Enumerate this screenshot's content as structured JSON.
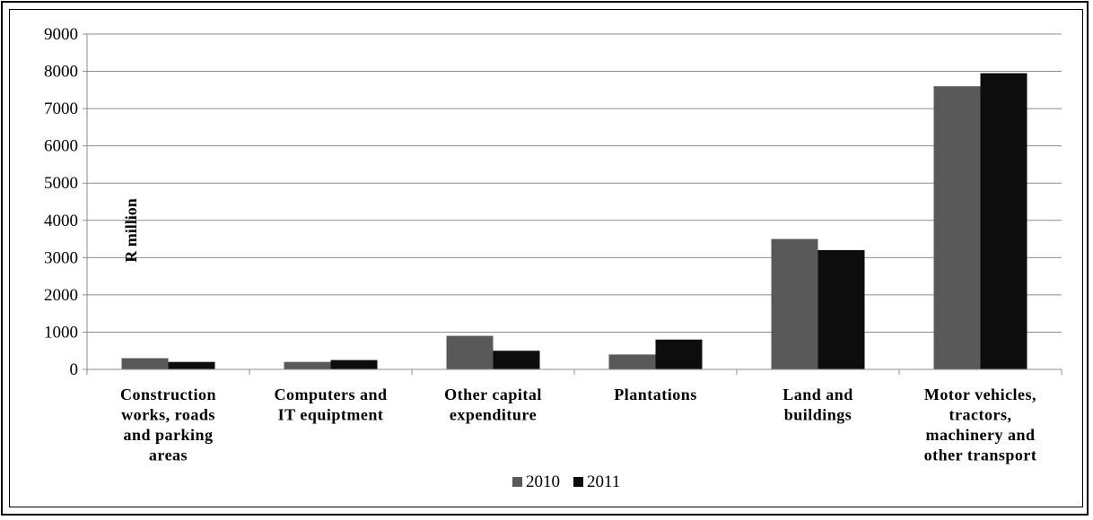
{
  "chart_data": {
    "type": "bar",
    "title": "",
    "xlabel": "",
    "ylabel": "R million",
    "ylim": [
      0,
      9000
    ],
    "yticks": [
      0,
      1000,
      2000,
      3000,
      4000,
      5000,
      6000,
      7000,
      8000,
      9000
    ],
    "categories": [
      [
        "Construction",
        "works, roads",
        "and parking",
        "areas"
      ],
      [
        "Computers and",
        "IT equiptment"
      ],
      [
        "Other capital",
        "expenditure"
      ],
      [
        "Plantations"
      ],
      [
        "Land and",
        "buildings"
      ],
      [
        "Motor vehicles,",
        "tractors,",
        "machinery  and",
        "other transport"
      ]
    ],
    "series": [
      {
        "name": "2010",
        "color": "#595959",
        "values": [
          300,
          200,
          900,
          400,
          3500,
          7600
        ]
      },
      {
        "name": "2011",
        "color": "#0d0d0d",
        "values": [
          200,
          250,
          500,
          800,
          3200,
          7950
        ]
      }
    ],
    "grid": true,
    "legend_position": "bottom"
  }
}
